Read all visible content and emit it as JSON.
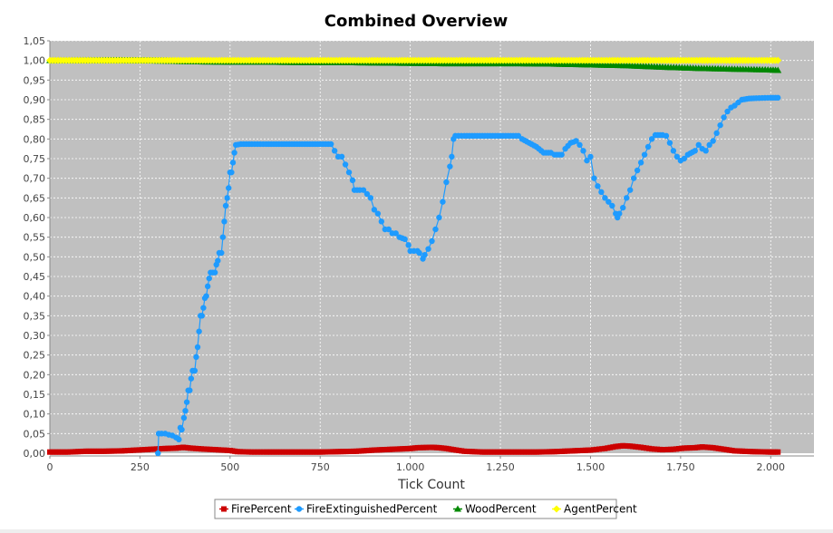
{
  "chart_data": {
    "type": "line",
    "title": "Combined Overview",
    "xlabel": "Tick Count",
    "ylabel": "",
    "xlim": [
      0,
      2120
    ],
    "ylim": [
      0,
      1.05
    ],
    "x_ticks": [
      {
        "v": 0,
        "label": "0"
      },
      {
        "v": 250,
        "label": "250"
      },
      {
        "v": 500,
        "label": "500"
      },
      {
        "v": 750,
        "label": "750"
      },
      {
        "v": 1000,
        "label": "1.000"
      },
      {
        "v": 1250,
        "label": "1.250"
      },
      {
        "v": 1500,
        "label": "1.500"
      },
      {
        "v": 1750,
        "label": "1.750"
      },
      {
        "v": 2000,
        "label": "2.000"
      }
    ],
    "y_ticks": [
      {
        "v": 0.0,
        "label": "0,00"
      },
      {
        "v": 0.05,
        "label": "0,05"
      },
      {
        "v": 0.1,
        "label": "0,10"
      },
      {
        "v": 0.15,
        "label": "0,15"
      },
      {
        "v": 0.2,
        "label": "0,20"
      },
      {
        "v": 0.25,
        "label": "0,25"
      },
      {
        "v": 0.3,
        "label": "0,30"
      },
      {
        "v": 0.35,
        "label": "0,35"
      },
      {
        "v": 0.4,
        "label": "0,40"
      },
      {
        "v": 0.45,
        "label": "0,45"
      },
      {
        "v": 0.5,
        "label": "0,50"
      },
      {
        "v": 0.55,
        "label": "0,55"
      },
      {
        "v": 0.6,
        "label": "0,60"
      },
      {
        "v": 0.65,
        "label": "0,65"
      },
      {
        "v": 0.7,
        "label": "0,70"
      },
      {
        "v": 0.75,
        "label": "0,75"
      },
      {
        "v": 0.8,
        "label": "0,80"
      },
      {
        "v": 0.85,
        "label": "0,85"
      },
      {
        "v": 0.9,
        "label": "0,90"
      },
      {
        "v": 0.95,
        "label": "0,95"
      },
      {
        "v": 1.0,
        "label": "1,00"
      },
      {
        "v": 1.05,
        "label": "1,05"
      }
    ],
    "grid": true,
    "plot_background": "#c0c0c0",
    "legend_position": "bottom",
    "series": [
      {
        "name": "FirePercent",
        "color": "#cc0000",
        "marker": "square",
        "points": [
          [
            0,
            0.003
          ],
          [
            50,
            0.003
          ],
          [
            100,
            0.005
          ],
          [
            150,
            0.005
          ],
          [
            200,
            0.006
          ],
          [
            240,
            0.008
          ],
          [
            280,
            0.01
          ],
          [
            320,
            0.012
          ],
          [
            350,
            0.013
          ],
          [
            370,
            0.015
          ],
          [
            390,
            0.013
          ],
          [
            420,
            0.011
          ],
          [
            460,
            0.009
          ],
          [
            500,
            0.007
          ],
          [
            520,
            0.004
          ],
          [
            560,
            0.003
          ],
          [
            600,
            0.003
          ],
          [
            650,
            0.003
          ],
          [
            700,
            0.003
          ],
          [
            750,
            0.003
          ],
          [
            800,
            0.004
          ],
          [
            850,
            0.005
          ],
          [
            900,
            0.008
          ],
          [
            950,
            0.01
          ],
          [
            1000,
            0.012
          ],
          [
            1020,
            0.014
          ],
          [
            1060,
            0.015
          ],
          [
            1080,
            0.014
          ],
          [
            1100,
            0.012
          ],
          [
            1120,
            0.009
          ],
          [
            1150,
            0.005
          ],
          [
            1200,
            0.003
          ],
          [
            1250,
            0.003
          ],
          [
            1300,
            0.003
          ],
          [
            1350,
            0.003
          ],
          [
            1400,
            0.004
          ],
          [
            1450,
            0.006
          ],
          [
            1500,
            0.008
          ],
          [
            1540,
            0.012
          ],
          [
            1570,
            0.017
          ],
          [
            1590,
            0.019
          ],
          [
            1610,
            0.018
          ],
          [
            1640,
            0.015
          ],
          [
            1670,
            0.011
          ],
          [
            1700,
            0.009
          ],
          [
            1730,
            0.01
          ],
          [
            1760,
            0.013
          ],
          [
            1790,
            0.014
          ],
          [
            1810,
            0.016
          ],
          [
            1840,
            0.014
          ],
          [
            1870,
            0.01
          ],
          [
            1900,
            0.006
          ],
          [
            1950,
            0.004
          ],
          [
            2000,
            0.003
          ],
          [
            2020,
            0.003
          ]
        ]
      },
      {
        "name": "FireExtinguishedPercent",
        "color": "#1e9bff",
        "marker": "circle",
        "points": [
          [
            300,
            0.0
          ],
          [
            302,
            0.05
          ],
          [
            310,
            0.05
          ],
          [
            320,
            0.05
          ],
          [
            330,
            0.047
          ],
          [
            340,
            0.045
          ],
          [
            350,
            0.04
          ],
          [
            358,
            0.035
          ],
          [
            362,
            0.065
          ],
          [
            366,
            0.06
          ],
          [
            372,
            0.09
          ],
          [
            376,
            0.108
          ],
          [
            380,
            0.13
          ],
          [
            384,
            0.16
          ],
          [
            388,
            0.16
          ],
          [
            392,
            0.19
          ],
          [
            396,
            0.21
          ],
          [
            402,
            0.21
          ],
          [
            406,
            0.245
          ],
          [
            410,
            0.27
          ],
          [
            414,
            0.31
          ],
          [
            418,
            0.35
          ],
          [
            422,
            0.35
          ],
          [
            426,
            0.37
          ],
          [
            430,
            0.395
          ],
          [
            434,
            0.4
          ],
          [
            438,
            0.425
          ],
          [
            442,
            0.445
          ],
          [
            446,
            0.46
          ],
          [
            452,
            0.46
          ],
          [
            458,
            0.46
          ],
          [
            462,
            0.48
          ],
          [
            466,
            0.49
          ],
          [
            470,
            0.51
          ],
          [
            476,
            0.51
          ],
          [
            480,
            0.55
          ],
          [
            484,
            0.59
          ],
          [
            488,
            0.63
          ],
          [
            492,
            0.65
          ],
          [
            496,
            0.675
          ],
          [
            500,
            0.715
          ],
          [
            504,
            0.715
          ],
          [
            508,
            0.74
          ],
          [
            512,
            0.765
          ],
          [
            516,
            0.785
          ],
          [
            530,
            0.787
          ],
          [
            560,
            0.787
          ],
          [
            600,
            0.787
          ],
          [
            650,
            0.787
          ],
          [
            700,
            0.787
          ],
          [
            750,
            0.787
          ],
          [
            780,
            0.787
          ],
          [
            790,
            0.77
          ],
          [
            800,
            0.755
          ],
          [
            810,
            0.755
          ],
          [
            820,
            0.735
          ],
          [
            830,
            0.715
          ],
          [
            840,
            0.695
          ],
          [
            845,
            0.67
          ],
          [
            860,
            0.67
          ],
          [
            870,
            0.67
          ],
          [
            880,
            0.66
          ],
          [
            890,
            0.65
          ],
          [
            900,
            0.62
          ],
          [
            910,
            0.61
          ],
          [
            920,
            0.59
          ],
          [
            930,
            0.57
          ],
          [
            940,
            0.57
          ],
          [
            950,
            0.56
          ],
          [
            960,
            0.56
          ],
          [
            970,
            0.55
          ],
          [
            985,
            0.545
          ],
          [
            995,
            0.53
          ],
          [
            1000,
            0.515
          ],
          [
            1010,
            0.515
          ],
          [
            1020,
            0.515
          ],
          [
            1025,
            0.51
          ],
          [
            1035,
            0.495
          ],
          [
            1040,
            0.505
          ],
          [
            1050,
            0.52
          ],
          [
            1060,
            0.54
          ],
          [
            1070,
            0.57
          ],
          [
            1080,
            0.6
          ],
          [
            1090,
            0.64
          ],
          [
            1100,
            0.69
          ],
          [
            1110,
            0.73
          ],
          [
            1115,
            0.755
          ],
          [
            1120,
            0.8
          ],
          [
            1125,
            0.808
          ],
          [
            1150,
            0.808
          ],
          [
            1200,
            0.808
          ],
          [
            1250,
            0.808
          ],
          [
            1300,
            0.808
          ],
          [
            1310,
            0.8
          ],
          [
            1330,
            0.79
          ],
          [
            1350,
            0.78
          ],
          [
            1370,
            0.765
          ],
          [
            1390,
            0.765
          ],
          [
            1400,
            0.76
          ],
          [
            1420,
            0.76
          ],
          [
            1430,
            0.775
          ],
          [
            1445,
            0.79
          ],
          [
            1460,
            0.795
          ],
          [
            1470,
            0.785
          ],
          [
            1480,
            0.77
          ],
          [
            1490,
            0.745
          ],
          [
            1500,
            0.755
          ],
          [
            1510,
            0.7
          ],
          [
            1520,
            0.68
          ],
          [
            1530,
            0.665
          ],
          [
            1540,
            0.65
          ],
          [
            1550,
            0.64
          ],
          [
            1560,
            0.63
          ],
          [
            1570,
            0.61
          ],
          [
            1575,
            0.6
          ],
          [
            1580,
            0.61
          ],
          [
            1590,
            0.625
          ],
          [
            1600,
            0.65
          ],
          [
            1610,
            0.67
          ],
          [
            1620,
            0.7
          ],
          [
            1630,
            0.72
          ],
          [
            1640,
            0.74
          ],
          [
            1650,
            0.76
          ],
          [
            1660,
            0.78
          ],
          [
            1670,
            0.8
          ],
          [
            1680,
            0.81
          ],
          [
            1700,
            0.81
          ],
          [
            1710,
            0.808
          ],
          [
            1720,
            0.79
          ],
          [
            1730,
            0.77
          ],
          [
            1740,
            0.755
          ],
          [
            1750,
            0.745
          ],
          [
            1760,
            0.75
          ],
          [
            1770,
            0.76
          ],
          [
            1790,
            0.77
          ],
          [
            1800,
            0.785
          ],
          [
            1810,
            0.775
          ],
          [
            1820,
            0.77
          ],
          [
            1830,
            0.785
          ],
          [
            1840,
            0.795
          ],
          [
            1850,
            0.815
          ],
          [
            1860,
            0.835
          ],
          [
            1870,
            0.855
          ],
          [
            1880,
            0.87
          ],
          [
            1890,
            0.88
          ],
          [
            1900,
            0.885
          ],
          [
            1910,
            0.893
          ],
          [
            1920,
            0.9
          ],
          [
            1940,
            0.903
          ],
          [
            1960,
            0.904
          ],
          [
            2000,
            0.905
          ],
          [
            2020,
            0.905
          ]
        ]
      },
      {
        "name": "WoodPercent",
        "color": "#008800",
        "marker": "triangle",
        "points": [
          [
            0,
            1.0
          ],
          [
            100,
            1.0
          ],
          [
            200,
            1.0
          ],
          [
            300,
            0.999
          ],
          [
            400,
            0.997
          ],
          [
            500,
            0.996
          ],
          [
            600,
            0.996
          ],
          [
            700,
            0.995
          ],
          [
            800,
            0.995
          ],
          [
            900,
            0.994
          ],
          [
            1000,
            0.993
          ],
          [
            1100,
            0.992
          ],
          [
            1200,
            0.992
          ],
          [
            1300,
            0.992
          ],
          [
            1400,
            0.991
          ],
          [
            1500,
            0.989
          ],
          [
            1600,
            0.987
          ],
          [
            1700,
            0.983
          ],
          [
            1800,
            0.98
          ],
          [
            1900,
            0.978
          ],
          [
            2000,
            0.976
          ],
          [
            2020,
            0.975
          ]
        ]
      },
      {
        "name": "AgentPercent",
        "color": "#ffff00",
        "marker": "diamond",
        "points": [
          [
            0,
            1.0
          ],
          [
            250,
            1.0
          ],
          [
            500,
            1.0
          ],
          [
            750,
            1.0
          ],
          [
            1000,
            1.0
          ],
          [
            1250,
            1.0
          ],
          [
            1500,
            1.0
          ],
          [
            1750,
            1.0
          ],
          [
            2020,
            1.0
          ]
        ]
      }
    ]
  }
}
